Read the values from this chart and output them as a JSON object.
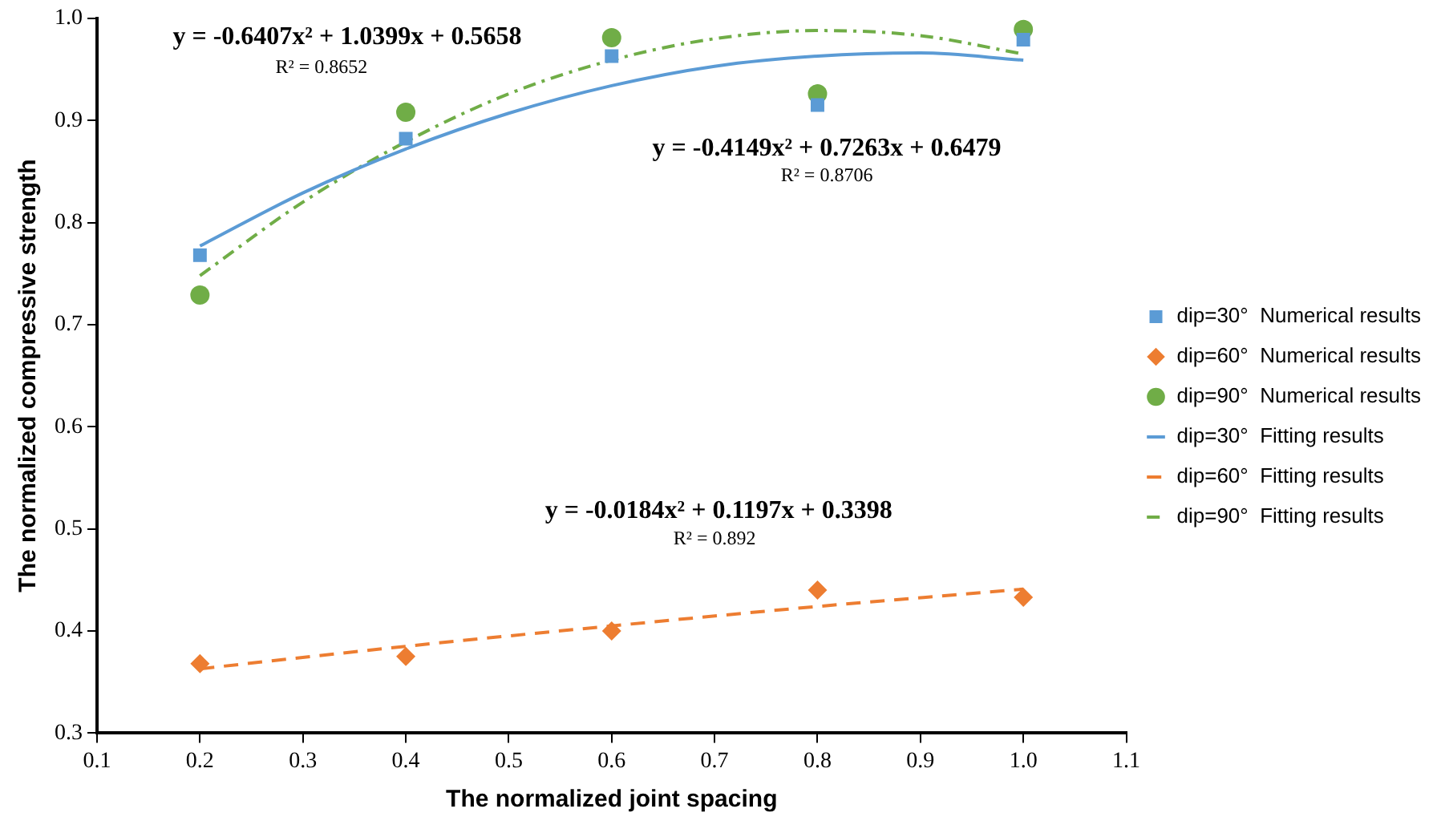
{
  "chart_data": {
    "type": "scatter",
    "xlabel": "The normalized joint spacing",
    "ylabel": "The normalized compressive strength",
    "xlim": [
      0.1,
      1.1
    ],
    "xticks": [
      0.1,
      0.2,
      0.3,
      0.4,
      0.5,
      0.6,
      0.7,
      0.8,
      0.9,
      {
        "value": 1,
        "label": "1.0"
      },
      1.1
    ],
    "ylim": [
      0.3,
      1
    ],
    "yticks": [
      0.3,
      0.4,
      0.5,
      0.6,
      0.7,
      0.8,
      0.9,
      {
        "value": 1,
        "label": "1.0"
      }
    ],
    "grid": false,
    "legend": "right",
    "series": [
      {
        "name": "dip=30°  Numerical results",
        "marker": "square",
        "color": "#5b9bd5",
        "x": [
          0.2,
          0.4,
          0.6,
          0.8,
          1.0
        ],
        "values": [
          0.768,
          0.882,
          0.963,
          0.915,
          0.979
        ]
      },
      {
        "name": "dip=60°  Numerical results",
        "marker": "diamond",
        "color": "#ed7d31",
        "x": [
          0.2,
          0.4,
          0.6,
          0.8,
          1.0
        ],
        "values": [
          0.368,
          0.375,
          0.4,
          0.44,
          0.433
        ]
      },
      {
        "name": "dip=90°  Numerical results",
        "marker": "circle",
        "color": "#70ad47",
        "x": [
          0.2,
          0.4,
          0.6,
          0.8,
          1.0
        ],
        "values": [
          0.729,
          0.908,
          0.981,
          0.926,
          0.989
        ]
      },
      {
        "name": "dip=30°  Fitting results",
        "type": "line",
        "line_style": "solid",
        "color": "#5b9bd5",
        "x": [
          0.2,
          0.3,
          0.4,
          0.5,
          0.6,
          0.7,
          0.8,
          0.9,
          1.0
        ],
        "values": [
          0.777,
          0.829,
          0.872,
          0.907,
          0.934,
          0.953,
          0.963,
          0.966,
          0.959
        ]
      },
      {
        "name": "dip=60°  Fitting results",
        "type": "line",
        "line_style": "dashed",
        "color": "#ed7d31",
        "x": [
          0.2,
          0.4,
          0.6,
          0.8,
          1.0
        ],
        "values": [
          0.363,
          0.385,
          0.405,
          0.424,
          0.441
        ]
      },
      {
        "name": "dip=90°  Fitting results",
        "type": "line",
        "line_style": "dashdot",
        "color": "#70ad47",
        "x": [
          0.2,
          0.3,
          0.4,
          0.5,
          0.6,
          0.7,
          0.8,
          0.9,
          1.0
        ],
        "values": [
          0.748,
          0.82,
          0.879,
          0.926,
          0.959,
          0.98,
          0.988,
          0.983,
          0.965
        ]
      }
    ],
    "annotations": [
      "y = -0.6407x² + 1.0399x + 0.5658",
      "R² = 0.8652",
      "y = -0.4149x² + 0.7263x + 0.6479",
      "R² = 0.8706",
      "y = -0.0184x² + 0.1197x + 0.3398",
      "R² = 0.892"
    ]
  }
}
